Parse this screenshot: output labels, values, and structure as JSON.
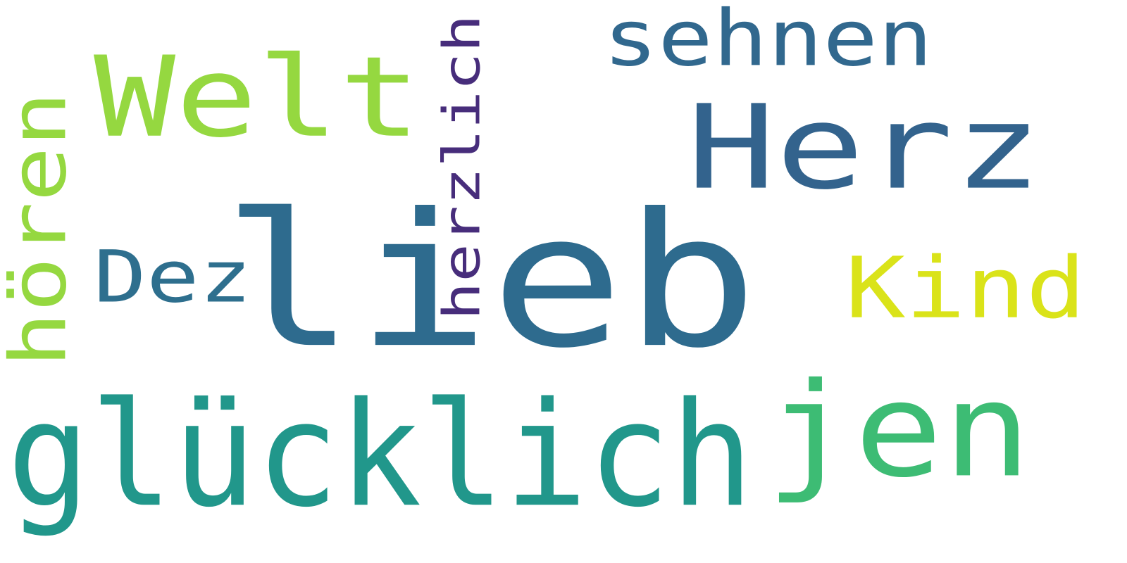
{
  "word_cloud": {
    "words": [
      {
        "text": "lieb",
        "color": "#2e6b8e",
        "orientation": "horizontal",
        "rank": 1
      },
      {
        "text": "glücklich",
        "color": "#21978b",
        "orientation": "horizontal",
        "rank": 2
      },
      {
        "text": "Herz",
        "color": "#33638d",
        "orientation": "horizontal",
        "rank": 3
      },
      {
        "text": "jen",
        "color": "#3dbc74",
        "orientation": "horizontal",
        "rank": 4
      },
      {
        "text": "Welt",
        "color": "#95d840",
        "orientation": "horizontal",
        "rank": 5
      },
      {
        "text": "hören",
        "color": "#95d840",
        "orientation": "vertical",
        "rank": 6
      },
      {
        "text": "Kind",
        "color": "#dae319",
        "orientation": "horizontal",
        "rank": 7
      },
      {
        "text": "sehnen",
        "color": "#31688e",
        "orientation": "horizontal",
        "rank": 8
      },
      {
        "text": "herzlich",
        "color": "#472d7b",
        "orientation": "vertical",
        "rank": 9
      },
      {
        "text": "Dez",
        "color": "#2e6f8e",
        "orientation": "horizontal",
        "rank": 10
      }
    ]
  }
}
